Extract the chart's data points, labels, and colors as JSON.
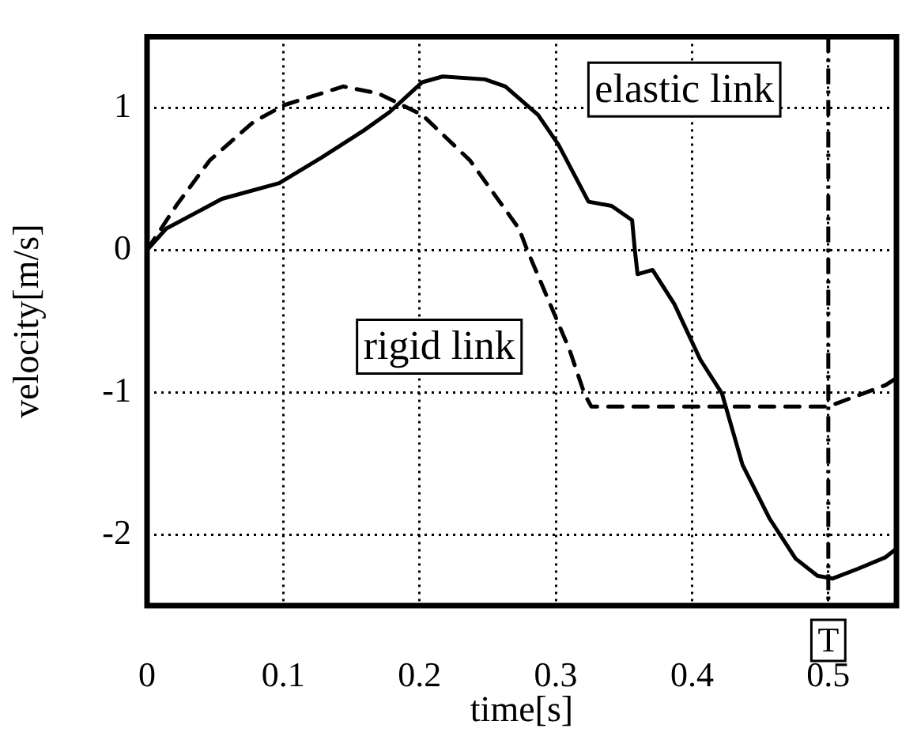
{
  "chart_data": {
    "type": "line",
    "xlabel": "time[s]",
    "ylabel": "velocity[m/s]",
    "xlim": [
      0,
      0.55
    ],
    "ylim": [
      -2.5,
      1.5
    ],
    "xticks": [
      0,
      0.1,
      0.2,
      0.3,
      0.4,
      0.5
    ],
    "yticks": [
      -2,
      -1,
      0,
      1
    ],
    "grid": true,
    "series": [
      {
        "color": "#000000",
        "line_style": "solid",
        "x": [
          0,
          0.014,
          0.055,
          0.097,
          0.128,
          0.159,
          0.178,
          0.202,
          0.217,
          0.248,
          0.263,
          0.287,
          0.302,
          0.324,
          0.341,
          0.356,
          0.358,
          0.36,
          0.371,
          0.387,
          0.406,
          0.422,
          0.437,
          0.457,
          0.476,
          0.492,
          0.503,
          0.522,
          0.542,
          0.55
        ],
        "values": [
          0,
          0.15,
          0.36,
          0.47,
          0.65,
          0.84,
          0.97,
          1.18,
          1.22,
          1.2,
          1.15,
          0.95,
          0.74,
          0.34,
          0.31,
          0.21,
          0,
          -0.17,
          -0.14,
          -0.38,
          -0.77,
          -1.01,
          -1.51,
          -1.89,
          -2.17,
          -2.29,
          -2.31,
          -2.24,
          -2.16,
          -2.1
        ]
      },
      {
        "color": "#000000",
        "line_style": "dashed",
        "x": [
          0,
          0.022,
          0.046,
          0.078,
          0.101,
          0.144,
          0.17,
          0.202,
          0.237,
          0.273,
          0.279,
          0.31,
          0.321,
          0.326,
          0.5,
          0.542,
          0.55
        ],
        "values": [
          0,
          0.32,
          0.63,
          0.9,
          1.02,
          1.15,
          1.1,
          0.95,
          0.63,
          0.15,
          0,
          -0.7,
          -1.01,
          -1.1,
          -1.1,
          -0.95,
          -0.9
        ]
      }
    ],
    "ref_lines": [
      {
        "axis": "x",
        "value": 0.5,
        "label": "T"
      }
    ],
    "annotations": [
      "elastic link",
      "rigid link"
    ]
  }
}
